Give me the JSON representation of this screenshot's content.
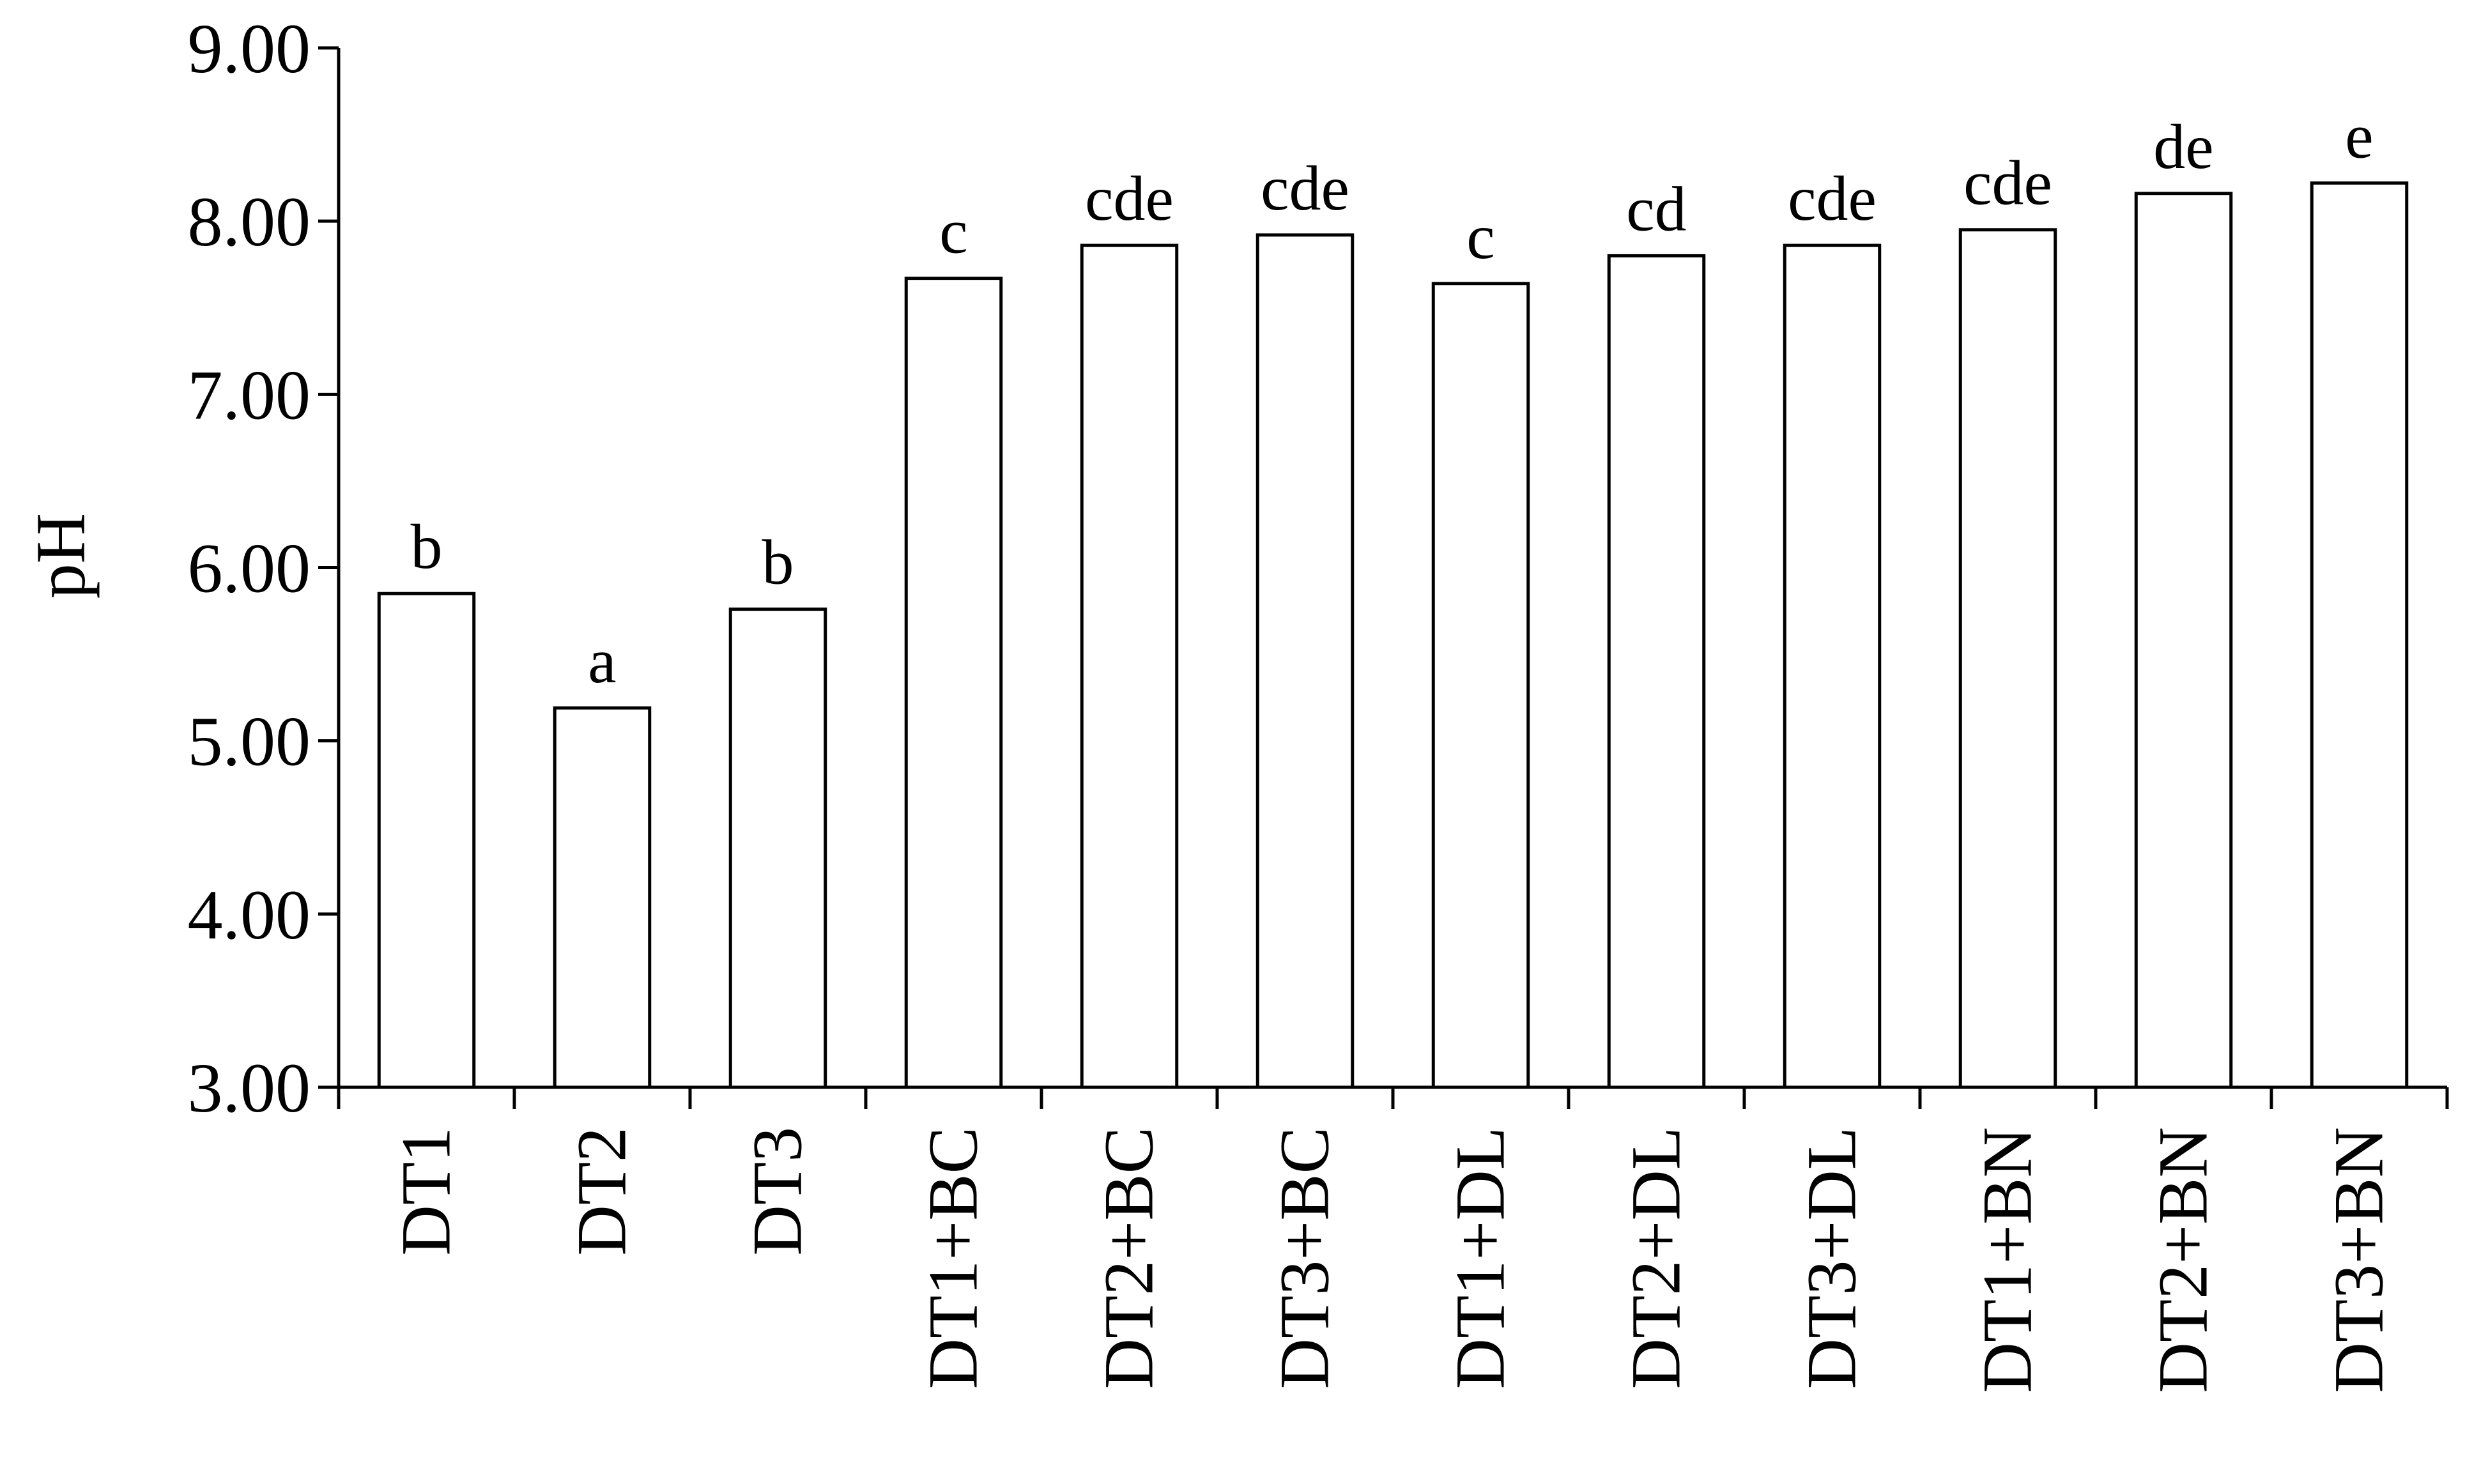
{
  "chart_data": {
    "type": "bar",
    "title": "",
    "xlabel": "",
    "ylabel": "pH",
    "ylim": [
      3.0,
      9.0
    ],
    "yticks": [
      "3.00",
      "4.00",
      "5.00",
      "6.00",
      "7.00",
      "8.00",
      "9.00"
    ],
    "grid": false,
    "legend": "none",
    "categories": [
      "DT1",
      "DT2",
      "DT3",
      "DT1+BC",
      "DT2+BC",
      "DT3+BC",
      "DT1+DL",
      "DT2+DL",
      "DT3+DL",
      "DT1+BN",
      "DT2+BN",
      "DT3+BN"
    ],
    "values": [
      5.85,
      5.19,
      5.76,
      7.67,
      7.86,
      7.92,
      7.64,
      7.8,
      7.86,
      7.95,
      8.16,
      8.22
    ],
    "letters": [
      "b",
      "a",
      "b",
      "c",
      "cde",
      "cde",
      "c",
      "cd",
      "cde",
      "cde",
      "de",
      "e"
    ],
    "colors": {
      "bar_fill": "#ffffff",
      "bar_stroke": "#000000",
      "axis": "#000000"
    }
  }
}
